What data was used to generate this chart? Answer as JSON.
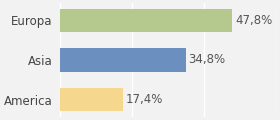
{
  "categories": [
    "America",
    "Asia",
    "Europa"
  ],
  "values": [
    17.4,
    34.8,
    47.8
  ],
  "labels": [
    "17,4%",
    "34,8%",
    "47,8%"
  ],
  "bar_colors": [
    "#f5d78e",
    "#6b8fbf",
    "#b5c98e"
  ],
  "background_color": "#f2f2f2",
  "xlim": [
    0,
    60
  ],
  "bar_height": 0.58,
  "label_fontsize": 8.5,
  "tick_fontsize": 8.5
}
